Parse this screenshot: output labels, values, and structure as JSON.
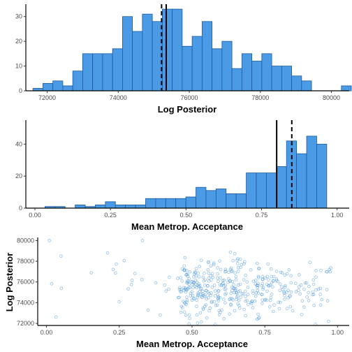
{
  "colors": {
    "bar_fill": "#4b9ae6",
    "bar_stroke": "#1b5aa0",
    "point": "#3f8fd9",
    "axis": "#000000",
    "tick_text": "#4d4d4d"
  },
  "chart_data": [
    {
      "type": "histogram",
      "xlabel": "Log Posterior",
      "ylabel": "",
      "xlim": [
        71400,
        80500
      ],
      "ylim": [
        0,
        35
      ],
      "grid": false,
      "x_ticks": [
        72000,
        74000,
        76000,
        78000,
        80000
      ],
      "x_tick_labels": [
        "72000",
        "74000",
        "76000",
        "78000",
        "80000"
      ],
      "y_ticks": [
        0,
        10,
        20,
        30
      ],
      "y_tick_labels": [
        "0",
        "10",
        "20",
        "30"
      ],
      "bin_start": 71600,
      "bin_width": 280,
      "counts": [
        1,
        3,
        4,
        2,
        8,
        15,
        15,
        15,
        17,
        30,
        24,
        31,
        28,
        33,
        33,
        18,
        22,
        28,
        17,
        20,
        9,
        15,
        12,
        15,
        10,
        10,
        6,
        4,
        0,
        0,
        0,
        2
      ],
      "vlines": [
        {
          "x": 75350,
          "style": "solid"
        },
        {
          "x": 75220,
          "style": "dashed"
        }
      ]
    },
    {
      "type": "histogram",
      "xlabel": "Mean Metrop. Acceptance",
      "ylabel": "",
      "xlim": [
        -0.03,
        1.04
      ],
      "ylim": [
        0,
        55
      ],
      "grid": false,
      "x_ticks": [
        0,
        0.25,
        0.5,
        0.75,
        1
      ],
      "x_tick_labels": [
        "0.00",
        "0.25",
        "0.50",
        "0.75",
        "1.00"
      ],
      "y_ticks": [
        0,
        20,
        40
      ],
      "y_tick_labels": [
        "0",
        "20",
        "40"
      ],
      "bin_start": 0.0,
      "bin_width": 0.0333,
      "counts": [
        0,
        1,
        1,
        0,
        2,
        1,
        2,
        4,
        2,
        2,
        2,
        6,
        6,
        6,
        6,
        7,
        13,
        11,
        12,
        9,
        9,
        22,
        22,
        22,
        26,
        42,
        34,
        45,
        40
      ],
      "vlines": [
        {
          "x": 0.8,
          "style": "solid"
        },
        {
          "x": 0.85,
          "style": "dashed"
        }
      ]
    },
    {
      "type": "scatter",
      "xlabel": "Mean Metrop. Acceptance",
      "ylabel": "Log Posterior",
      "xlim": [
        -0.03,
        1.04
      ],
      "ylim": [
        71800,
        80300
      ],
      "grid": false,
      "x_ticks": [
        0,
        0.25,
        0.5,
        0.75,
        1
      ],
      "x_tick_labels": [
        "0.00",
        "0.25",
        "0.50",
        "0.75",
        "1.00"
      ],
      "y_ticks": [
        72000,
        74000,
        76000,
        78000,
        80000
      ],
      "y_tick_labels": [
        "72000",
        "74000",
        "76000",
        "78000",
        "80000"
      ],
      "x": [],
      "y": []
    }
  ]
}
